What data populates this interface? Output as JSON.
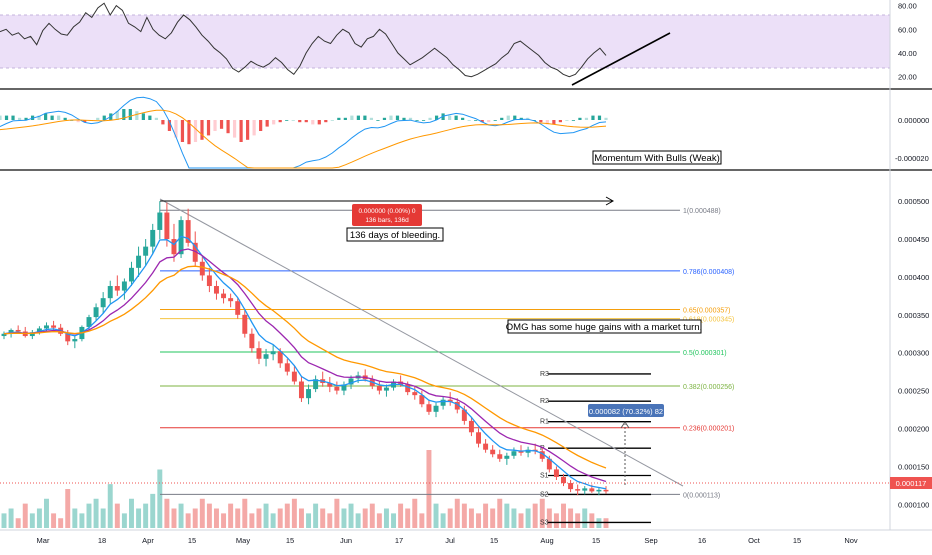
{
  "chart_data": {
    "type": "candlestick",
    "instrument": "OMG",
    "date_axis_labels": [
      "Mar",
      "18",
      "Apr",
      "15",
      "May",
      "15",
      "Jun",
      "17",
      "Jul",
      "15",
      "Aug",
      "15",
      "Sep",
      "16",
      "Oct",
      "15",
      "Nov"
    ],
    "price_axis": {
      "ticks": [
        "0.000500",
        "0.000450",
        "0.000400",
        "0.000350",
        "0.000300",
        "0.000250",
        "0.000200",
        "0.000150",
        "0.000100"
      ],
      "ylim": [
        7e-05,
        0.00052
      ],
      "last_price_label": "0.000117",
      "last_price": 0.000117
    },
    "rsi_panel": {
      "ticks": [
        "80.00",
        "60.00",
        "40.00",
        "20.00"
      ],
      "ylim": [
        13,
        83
      ],
      "band": [
        30,
        70
      ],
      "values": [
        58,
        60,
        55,
        57,
        52,
        54,
        47,
        59,
        65,
        60,
        56,
        55,
        62,
        66,
        74,
        70,
        78,
        82,
        72,
        80,
        76,
        65,
        62,
        58,
        70,
        60,
        55,
        52,
        57,
        66,
        72,
        68,
        62,
        55,
        50,
        44,
        40,
        35,
        27,
        24,
        28,
        33,
        30,
        28,
        31,
        36,
        32,
        26,
        22,
        29,
        40,
        48,
        54,
        50,
        48,
        55,
        60,
        57,
        48,
        45,
        52,
        54,
        60,
        56,
        48,
        40,
        35,
        30,
        33,
        36,
        40,
        44,
        40,
        36,
        30,
        26,
        21,
        20,
        22,
        25,
        28,
        31,
        36,
        40,
        48,
        50,
        46,
        42,
        38,
        32,
        28,
        26,
        22,
        20,
        22,
        28,
        35,
        40,
        44,
        38
      ]
    },
    "macd_panel": {
      "ticks": [
        "0.000000",
        "-0.000020"
      ],
      "annotation": "Momentum With Bulls (Weak)",
      "hist": [
        2,
        2,
        2,
        1,
        1,
        2,
        2,
        3,
        2,
        2,
        1,
        0,
        -1,
        -1,
        0,
        1,
        2,
        3,
        4,
        5,
        5,
        4,
        3,
        2,
        1,
        -2,
        -5,
        -8,
        -10,
        -11,
        -10,
        -9,
        -7,
        -5,
        -4,
        -6,
        -8,
        -10,
        -9,
        -7,
        -5,
        -3,
        -2,
        -1,
        0,
        0,
        -1,
        -1,
        -2,
        -2,
        -1,
        0,
        1,
        1,
        2,
        2,
        2,
        1,
        0,
        1,
        2,
        2,
        1,
        1,
        0,
        0,
        1,
        2,
        3,
        2,
        2,
        1,
        0,
        0,
        -1,
        -1,
        0,
        1,
        2,
        2,
        1,
        1,
        0,
        -1,
        -2,
        -2,
        -1,
        0,
        0,
        1,
        1,
        2,
        2,
        1
      ]
    },
    "candles": [
      [
        0.000322,
        0.000328,
        0.000318,
        0.000325
      ],
      [
        0.000325,
        0.000332,
        0.00032,
        0.00033
      ],
      [
        0.00033,
        0.000336,
        0.000326,
        0.000328
      ],
      [
        0.000328,
        0.000334,
        0.00032,
        0.000322
      ],
      [
        0.000322,
        0.00033,
        0.000318,
        0.000327
      ],
      [
        0.000327,
        0.000335,
        0.000324,
        0.000332
      ],
      [
        0.000332,
        0.00034,
        0.000328,
        0.000336
      ],
      [
        0.000336,
        0.000342,
        0.00033,
        0.000333
      ],
      [
        0.000333,
        0.000338,
        0.000322,
        0.000325
      ],
      [
        0.000325,
        0.00033,
        0.00031,
        0.000315
      ],
      [
        0.000315,
        0.000322,
        0.000306,
        0.000318
      ],
      [
        0.000318,
        0.000336,
        0.000315,
        0.000334
      ],
      [
        0.000334,
        0.00035,
        0.00033,
        0.000347
      ],
      [
        0.000347,
        0.000365,
        0.000342,
        0.00036
      ],
      [
        0.00036,
        0.00038,
        0.000352,
        0.000372
      ],
      [
        0.000372,
        0.000395,
        0.000365,
        0.000388
      ],
      [
        0.000388,
        0.000402,
        0.000375,
        0.000382
      ],
      [
        0.000382,
        0.000398,
        0.00037,
        0.000394
      ],
      [
        0.000394,
        0.00042,
        0.000388,
        0.000412
      ],
      [
        0.000412,
        0.00044,
        0.0004,
        0.000428
      ],
      [
        0.000428,
        0.00045,
        0.000415,
        0.00044
      ],
      [
        0.00044,
        0.00047,
        0.00043,
        0.000462
      ],
      [
        0.000462,
        0.0005,
        0.00045,
        0.000485
      ],
      [
        0.000485,
        0.000498,
        0.00044,
        0.00045
      ],
      [
        0.00045,
        0.00047,
        0.00042,
        0.00043
      ],
      [
        0.00043,
        0.00048,
        0.000425,
        0.000475
      ],
      [
        0.000475,
        0.00049,
        0.00044,
        0.000445
      ],
      [
        0.000445,
        0.00046,
        0.000415,
        0.00042
      ],
      [
        0.00042,
        0.000428,
        0.000395,
        0.000402
      ],
      [
        0.000402,
        0.000412,
        0.00038,
        0.000388
      ],
      [
        0.000388,
        0.000395,
        0.00037,
        0.000378
      ],
      [
        0.000378,
        0.000384,
        0.000365,
        0.000372
      ],
      [
        0.000372,
        0.000378,
        0.00036,
        0.000368
      ],
      [
        0.000368,
        0.000372,
        0.000345,
        0.00035
      ],
      [
        0.00035,
        0.000358,
        0.00032,
        0.000325
      ],
      [
        0.000325,
        0.000332,
        0.0003,
        0.000306
      ],
      [
        0.000306,
        0.000315,
        0.000285,
        0.000292
      ],
      [
        0.000292,
        0.000305,
        0.000282,
        0.000298
      ],
      [
        0.000298,
        0.00031,
        0.00029,
        0.000302
      ],
      [
        0.000302,
        0.000306,
        0.00028,
        0.000286
      ],
      [
        0.000286,
        0.000292,
        0.00027,
        0.000275
      ],
      [
        0.000275,
        0.000282,
        0.000258,
        0.000262
      ],
      [
        0.000262,
        0.000268,
        0.000235,
        0.00024
      ],
      [
        0.00024,
        0.000258,
        0.000232,
        0.000252
      ],
      [
        0.000252,
        0.00027,
        0.000248,
        0.000265
      ],
      [
        0.000265,
        0.000275,
        0.000255,
        0.00026
      ],
      [
        0.00026,
        0.000268,
        0.000248,
        0.000255
      ],
      [
        0.000255,
        0.000262,
        0.000245,
        0.00025
      ],
      [
        0.00025,
        0.000262,
        0.000244,
        0.000258
      ],
      [
        0.000258,
        0.00027,
        0.000252,
        0.000266
      ],
      [
        0.000266,
        0.000275,
        0.00026,
        0.00027
      ],
      [
        0.00027,
        0.000278,
        0.000262,
        0.000265
      ],
      [
        0.000265,
        0.00027,
        0.000252,
        0.000256
      ],
      [
        0.000256,
        0.000262,
        0.000245,
        0.00025
      ],
      [
        0.00025,
        0.000258,
        0.000242,
        0.000254
      ],
      [
        0.000254,
        0.000265,
        0.00025,
        0.000262
      ],
      [
        0.000262,
        0.00027,
        0.000255,
        0.000258
      ],
      [
        0.000258,
        0.000262,
        0.000244,
        0.000248
      ],
      [
        0.000248,
        0.000255,
        0.000238,
        0.000244
      ],
      [
        0.000244,
        0.00025,
        0.000228,
        0.000232
      ],
      [
        0.000232,
        0.000238,
        0.000218,
        0.000222
      ],
      [
        0.000222,
        0.000234,
        0.000215,
        0.00023
      ],
      [
        0.00023,
        0.000242,
        0.000225,
        0.000238
      ],
      [
        0.000238,
        0.000248,
        0.00023,
        0.000235
      ],
      [
        0.000235,
        0.00024,
        0.00022,
        0.000225
      ],
      [
        0.000225,
        0.00023,
        0.000205,
        0.00021
      ],
      [
        0.00021,
        0.000215,
        0.00019,
        0.000195
      ],
      [
        0.000195,
        0.0002,
        0.000175,
        0.00018
      ],
      [
        0.00018,
        0.000186,
        0.000168,
        0.000172
      ],
      [
        0.000172,
        0.000178,
        0.000162,
        0.000166
      ],
      [
        0.000166,
        0.000172,
        0.000156,
        0.00016
      ],
      [
        0.00016,
        0.000168,
        0.000152,
        0.000164
      ],
      [
        0.000164,
        0.000175,
        0.00016,
        0.00017
      ],
      [
        0.00017,
        0.000178,
        0.000164,
        0.000168
      ],
      [
        0.000168,
        0.000176,
        0.000162,
        0.000172
      ],
      [
        0.000172,
        0.00018,
        0.000166,
        0.00017
      ],
      [
        0.00017,
        0.000174,
        0.000156,
        0.00016
      ],
      [
        0.00016,
        0.000164,
        0.000142,
        0.000146
      ],
      [
        0.000146,
        0.00015,
        0.000132,
        0.000136
      ],
      [
        0.000136,
        0.00014,
        0.000124,
        0.000128
      ],
      [
        0.000128,
        0.000132,
        0.000116,
        0.00012
      ],
      [
        0.00012,
        0.000126,
        0.000112,
        0.000118
      ],
      [
        0.000118,
        0.000124,
        0.000113,
        0.000121
      ],
      [
        0.000121,
        0.000126,
        0.000115,
        0.000117
      ],
      [
        0.000117,
        0.000122,
        0.000112,
        0.000119
      ],
      [
        0.000119,
        0.000124,
        0.000114,
        0.000117
      ]
    ],
    "volume": [
      3,
      4,
      2,
      5,
      3,
      4,
      6,
      3,
      2,
      8,
      4,
      3,
      5,
      6,
      4,
      9,
      5,
      3,
      6,
      4,
      5,
      7,
      12,
      6,
      4,
      5,
      3,
      4,
      6,
      5,
      4,
      3,
      5,
      4,
      6,
      3,
      4,
      5,
      3,
      4,
      5,
      6,
      4,
      3,
      5,
      4,
      3,
      6,
      4,
      5,
      3,
      4,
      5,
      3,
      4,
      3,
      5,
      4,
      6,
      3,
      16,
      5,
      3,
      4,
      6,
      5,
      4,
      3,
      5,
      4,
      6,
      5,
      4,
      3,
      4,
      5,
      6,
      4,
      3,
      5,
      4,
      3,
      4,
      3,
      2,
      2
    ],
    "fib_levels": [
      {
        "label": "1(0.000488)",
        "value": 0.000488,
        "color": "#787b86"
      },
      {
        "label": "0.786(0.000408)",
        "value": 0.000408,
        "color": "#2962ff"
      },
      {
        "label": "0.65(0.000357)",
        "value": 0.000357,
        "color": "#f59e0b"
      },
      {
        "label": "0.618(0.000345)",
        "value": 0.000345,
        "color": "#f5c542"
      },
      {
        "label": "0.5(0.000301)",
        "value": 0.000301,
        "color": "#22c55e"
      },
      {
        "label": "0.382(0.000256)",
        "value": 0.000256,
        "color": "#7cb342"
      },
      {
        "label": "0.236(0.000201)",
        "value": 0.000201,
        "color": "#e53935"
      },
      {
        "label": "0(0.000113)",
        "value": 0.000113,
        "color": "#787b86"
      }
    ],
    "pivot_levels": [
      {
        "label": "R3",
        "value": 0.000272
      },
      {
        "label": "R2",
        "value": 0.000236
      },
      {
        "label": "R1",
        "value": 0.000209
      },
      {
        "label": "P",
        "value": 0.000174
      },
      {
        "label": "S1",
        "value": 0.000138
      },
      {
        "label": "S2",
        "value": 0.000113
      },
      {
        "label": "S3",
        "value": 7.6e-05
      }
    ],
    "annotations": {
      "bleeding": "136 days of bleeding.",
      "gains": "OMG has some huge gains with a market turn.",
      "range_box_line1": "0.000000 (0.00%) 0",
      "range_box_line2": "136 bars, 136d",
      "target_box": "0.000082 (70.32%) 82"
    }
  },
  "colors": {
    "up": "#26a69a",
    "down": "#ef5350",
    "ema_fast": "#2196f3",
    "ema_mid": "#9c27b0",
    "ema_slow": "#ff9800",
    "rsi_band": "#e9dcf7",
    "macd_line": "#2196f3",
    "signal_line": "#ff9800",
    "price_tag": "#ef5350",
    "target_tag": "#4a74b8",
    "range_tag": "#e53935"
  }
}
